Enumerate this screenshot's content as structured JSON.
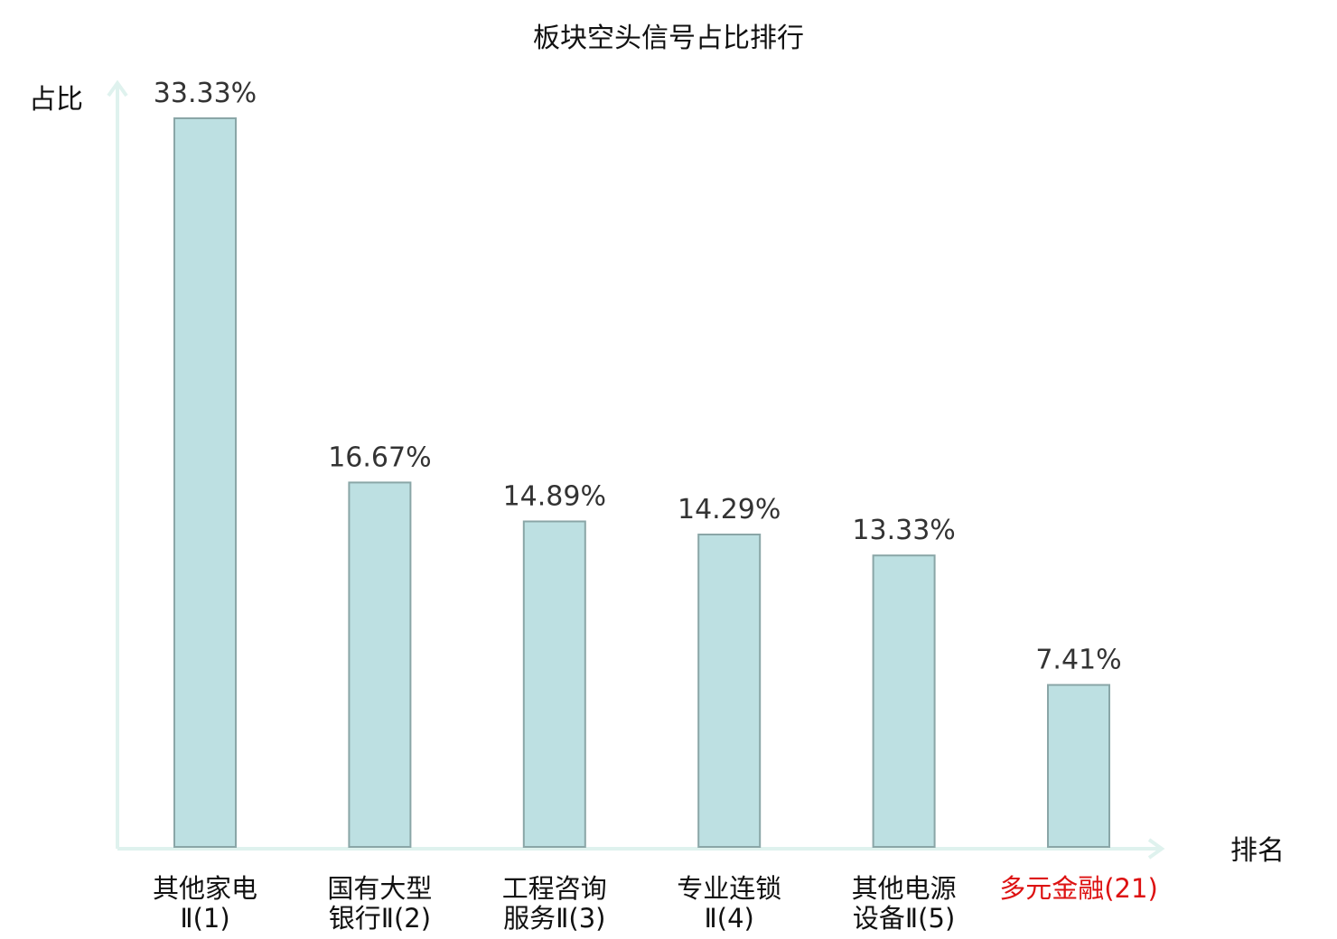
{
  "chart_data": {
    "type": "bar",
    "title": "板块空头信号占比排行",
    "ylabel": "占比",
    "xlabel": "排名",
    "categories": [
      [
        "其他家电",
        "Ⅱ(1)"
      ],
      [
        "国有大型",
        "银行Ⅱ(2)"
      ],
      [
        "工程咨询",
        "服务Ⅱ(3)"
      ],
      [
        "专业连锁",
        "Ⅱ(4)"
      ],
      [
        "其他电源",
        "设备Ⅱ(5)"
      ],
      [
        "多元金融(21)"
      ]
    ],
    "values": [
      33.33,
      16.67,
      14.89,
      14.29,
      13.33,
      7.41
    ],
    "value_labels": [
      "33.33%",
      "16.67%",
      "14.89%",
      "14.29%",
      "13.33%",
      "7.41%"
    ],
    "highlight_index": 5,
    "ylim": [
      0,
      33.33
    ],
    "grid": false,
    "colors": {
      "bar_fill": "#bde0e2",
      "bar_stroke": "#8aa6a7",
      "axis": "#dff2ee",
      "label": "#111111",
      "highlight_label": "#dd1111"
    }
  }
}
